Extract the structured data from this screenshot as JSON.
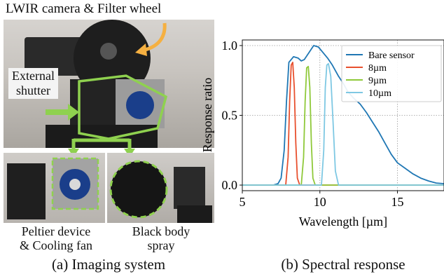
{
  "panel_a": {
    "top_label": "LWIR camera & Filter wheel",
    "shutter_label_line1": "External",
    "shutter_label_line2": "shutter",
    "peltier_label_line1": "Peltier device",
    "peltier_label_line2": "& Cooling fan",
    "blackbody_label_line1": "Black body",
    "blackbody_label_line2": "spray",
    "caption": "(a) Imaging system",
    "colors": {
      "highlight": "#8fd14f",
      "arrow": "#f5b041"
    }
  },
  "panel_b": {
    "caption": "(b) Spectral response"
  },
  "chart_data": {
    "type": "line",
    "xlabel": "Wavelength [µm]",
    "ylabel": "Response ratio",
    "xlim": [
      5,
      18
    ],
    "ylim": [
      -0.04,
      1.04
    ],
    "xticks": [
      5,
      10,
      15
    ],
    "yticks": [
      0.0,
      0.5,
      1.0
    ],
    "xtick_labels": [
      "5",
      "10",
      "15"
    ],
    "ytick_labels": [
      "0.0",
      "0.5",
      "1.0"
    ],
    "grid": true,
    "legend_position": "top-right",
    "series": [
      {
        "name": "Bare sensor",
        "color": "#1f77b4",
        "x": [
          5.0,
          7.0,
          7.3,
          7.5,
          7.7,
          7.85,
          8.0,
          8.3,
          8.6,
          8.8,
          9.0,
          9.3,
          9.6,
          9.9,
          10.2,
          10.5,
          10.8,
          11.2,
          11.5,
          11.8,
          12.2,
          12.6,
          13.0,
          13.4,
          13.8,
          14.2,
          14.6,
          15.0,
          15.5,
          16.0,
          16.5,
          17.0,
          17.5,
          18.0
        ],
        "y": [
          0.0,
          0.0,
          0.01,
          0.05,
          0.25,
          0.6,
          0.88,
          0.92,
          0.91,
          0.89,
          0.9,
          0.95,
          1.0,
          0.99,
          0.95,
          0.91,
          0.86,
          0.78,
          0.73,
          0.67,
          0.62,
          0.58,
          0.52,
          0.45,
          0.38,
          0.3,
          0.22,
          0.16,
          0.12,
          0.08,
          0.05,
          0.03,
          0.015,
          0.01
        ]
      },
      {
        "name": "8µm",
        "color": "#e8502e",
        "x": [
          5.0,
          7.8,
          7.95,
          8.05,
          8.15,
          8.25,
          8.35,
          8.45,
          8.55,
          8.7,
          18.0
        ],
        "y": [
          0.0,
          0.0,
          0.2,
          0.6,
          0.86,
          0.88,
          0.7,
          0.3,
          0.05,
          0.0,
          0.0
        ]
      },
      {
        "name": "9µm",
        "color": "#8fc93a",
        "x": [
          5.0,
          8.8,
          8.95,
          9.05,
          9.15,
          9.25,
          9.35,
          9.45,
          9.55,
          9.7,
          18.0
        ],
        "y": [
          0.0,
          0.0,
          0.2,
          0.6,
          0.84,
          0.85,
          0.7,
          0.3,
          0.05,
          0.0,
          0.0
        ]
      },
      {
        "name": "10µm",
        "color": "#7ec8e3",
        "x": [
          5.0,
          10.1,
          10.25,
          10.35,
          10.45,
          10.55,
          10.7,
          10.85,
          11.0,
          11.2,
          18.0
        ],
        "y": [
          0.0,
          0.0,
          0.25,
          0.7,
          0.86,
          0.87,
          0.78,
          0.45,
          0.1,
          0.0,
          0.0
        ]
      }
    ]
  }
}
